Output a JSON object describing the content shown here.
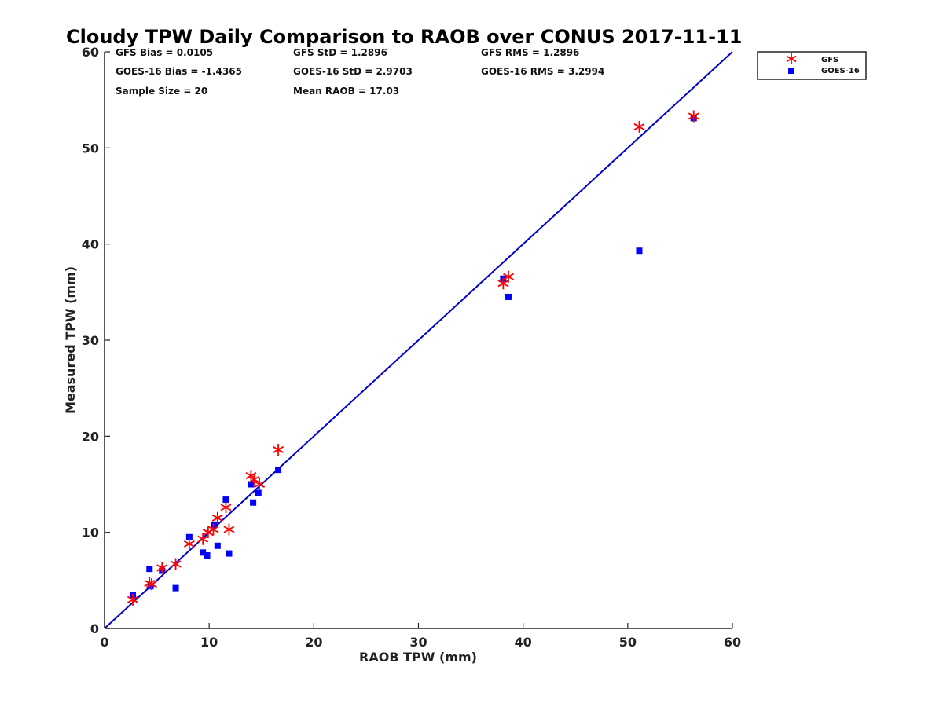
{
  "chart_data": {
    "type": "scatter",
    "title": "Cloudy TPW Daily Comparison to RAOB over CONUS 2017-11-11",
    "xlabel": "RAOB TPW (mm)",
    "ylabel": "Measured TPW (mm)",
    "xlim": [
      0,
      60
    ],
    "ylim": [
      0,
      60
    ],
    "xticks": [
      0,
      10,
      20,
      30,
      40,
      50,
      60
    ],
    "yticks": [
      0,
      10,
      20,
      30,
      40,
      50,
      60
    ],
    "reference_line": {
      "x": [
        0,
        60
      ],
      "y": [
        0,
        60
      ],
      "color": "#0000cc"
    },
    "legend_position": "top-right-outside",
    "series": [
      {
        "name": "GFS",
        "marker": "asterisk",
        "color": "#ff0000",
        "points": [
          [
            2.7,
            3.0
          ],
          [
            4.3,
            4.7
          ],
          [
            4.5,
            4.6
          ],
          [
            5.5,
            6.3
          ],
          [
            6.8,
            6.7
          ],
          [
            8.1,
            8.8
          ],
          [
            9.4,
            9.3
          ],
          [
            9.9,
            10.0
          ],
          [
            10.4,
            10.3
          ],
          [
            10.8,
            11.5
          ],
          [
            11.6,
            12.6
          ],
          [
            11.9,
            10.3
          ],
          [
            14.0,
            15.9
          ],
          [
            14.3,
            15.5
          ],
          [
            14.8,
            15.0
          ],
          [
            16.6,
            18.6
          ],
          [
            38.1,
            35.9
          ],
          [
            38.6,
            36.6
          ],
          [
            51.1,
            52.2
          ],
          [
            56.3,
            53.3
          ]
        ]
      },
      {
        "name": "GOES-16",
        "marker": "square",
        "color": "#0000ff",
        "points": [
          [
            2.7,
            3.5
          ],
          [
            4.3,
            6.2
          ],
          [
            4.4,
            4.4
          ],
          [
            5.5,
            6.0
          ],
          [
            6.8,
            4.2
          ],
          [
            8.1,
            9.5
          ],
          [
            9.4,
            7.9
          ],
          [
            9.8,
            7.6
          ],
          [
            10.5,
            10.8
          ],
          [
            10.8,
            8.6
          ],
          [
            11.6,
            13.4
          ],
          [
            11.9,
            7.8
          ],
          [
            14.0,
            15.0
          ],
          [
            14.2,
            13.1
          ],
          [
            14.7,
            14.1
          ],
          [
            16.6,
            16.5
          ],
          [
            38.1,
            36.4
          ],
          [
            38.6,
            34.5
          ],
          [
            51.1,
            39.3
          ],
          [
            56.3,
            53.1
          ]
        ]
      }
    ],
    "stats": {
      "gfs_bias": "GFS Bias = 0.0105",
      "goes_bias": "GOES-16 Bias = -1.4365",
      "sample_size": "Sample Size = 20",
      "gfs_std": "GFS StD = 1.2896",
      "goes_std": "GOES-16 StD = 2.9703",
      "mean_raob": "Mean RAOB = 17.03",
      "gfs_rms": "GFS RMS = 1.2896",
      "goes_rms": "GOES-16 RMS = 3.2994"
    }
  }
}
